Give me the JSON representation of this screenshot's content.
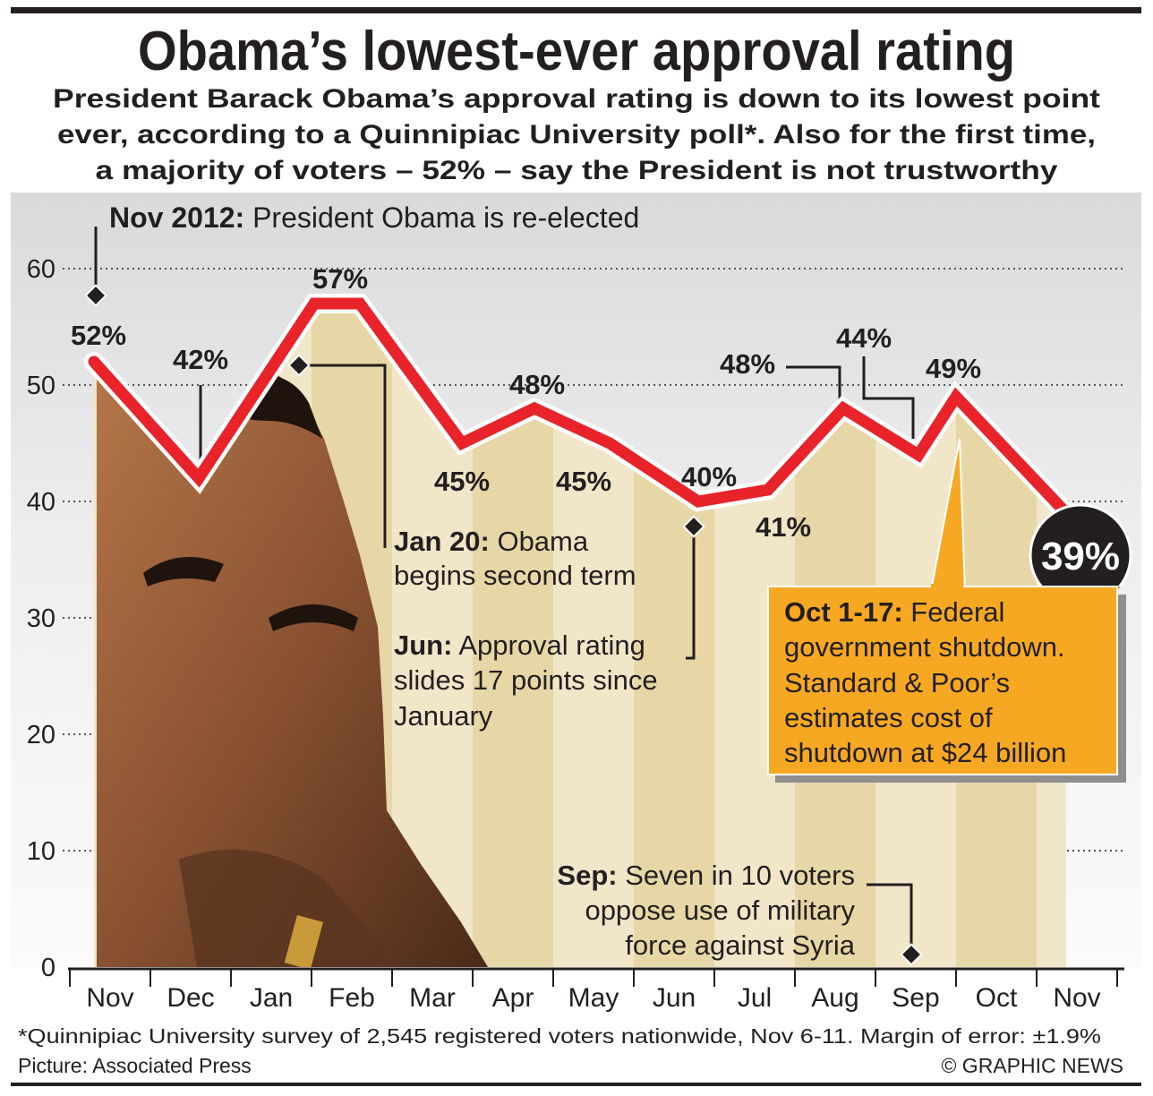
{
  "header": {
    "title": "Obama’s lowest-ever approval rating",
    "subtitle_lines": [
      "President Barack Obama’s approval rating is down to its lowest point",
      "ever, according to a Quinnipiac University poll*. Also for the first time,",
      "a majority of voters – 52% – say the President is not trustworthy"
    ]
  },
  "annotations": {
    "nov2012": {
      "bold": "Nov 2012:",
      "text": " President Obama is re-elected"
    },
    "jan20": {
      "bold": "Jan 20:",
      "line1": " Obama",
      "line2": "begins second term"
    },
    "jun": {
      "bold": "Jun:",
      "line1": " Approval rating",
      "line2": "slides 17 points since",
      "line3": "January"
    },
    "sep": {
      "bold": "Sep:",
      "line1": " Seven in 10 voters",
      "line2": "oppose use of military",
      "line3": "force against Syria"
    },
    "oct": {
      "bold": "Oct 1-17:",
      "line1": " Federal",
      "line2": "government shutdown.",
      "line3": "Standard & Poor’s",
      "line4": "estimates cost of",
      "line5": "shutdown at $24 billion"
    },
    "latest": "39%"
  },
  "chart_data": {
    "type": "line",
    "title": "Obama’s lowest-ever approval rating",
    "xlabel": "",
    "ylabel": "",
    "ylim": [
      0,
      60
    ],
    "yticks": [
      0,
      10,
      20,
      30,
      40,
      50,
      60
    ],
    "grid": "horizontal dotted",
    "legend": "none",
    "categories": [
      "Nov",
      "Dec",
      "Jan",
      "Feb",
      "Mar",
      "Apr",
      "May",
      "Jun",
      "Jul",
      "Aug",
      "Sep",
      "Oct",
      "Nov"
    ],
    "series": [
      {
        "points": [
          {
            "date": "2012-11-10",
            "value": 52,
            "label": "52%"
          },
          {
            "date": "2012-12-19",
            "value": 42,
            "label": "42%"
          },
          {
            "date": "2013-02-02",
            "value": 57,
            "label": "57%"
          },
          {
            "date": "2013-02-19",
            "value": 57,
            "label": ""
          },
          {
            "date": "2013-03-27",
            "value": 45,
            "label": "45%"
          },
          {
            "date": "2013-04-24",
            "value": 48,
            "label": "48%"
          },
          {
            "date": "2013-05-22",
            "value": 45,
            "label": "45%"
          },
          {
            "date": "2013-06-25",
            "value": 40,
            "label": "40%"
          },
          {
            "date": "2013-07-21",
            "value": 41,
            "label": "41%"
          },
          {
            "date": "2013-08-19",
            "value": 48,
            "label": "48%"
          },
          {
            "date": "2013-09-17",
            "value": 44,
            "label": "44%"
          },
          {
            "date": "2013-10-01",
            "value": 49,
            "label": "49%"
          },
          {
            "date": "2013-11-12",
            "value": 39,
            "label": "39%"
          }
        ]
      }
    ]
  },
  "colors": {
    "line": "#e8232a",
    "callout": "#f7a823",
    "badge": "#231f20",
    "stripe_light": "#f1e6c8",
    "stripe_dark": "#e7d7a6"
  },
  "footer": {
    "note": "*Quinnipiac University survey of 2,545 registered voters nationwide, Nov 6-11. Margin of error: ±1.9%",
    "credit": "Picture: Associated Press",
    "copyright": "© GRAPHIC NEWS"
  }
}
